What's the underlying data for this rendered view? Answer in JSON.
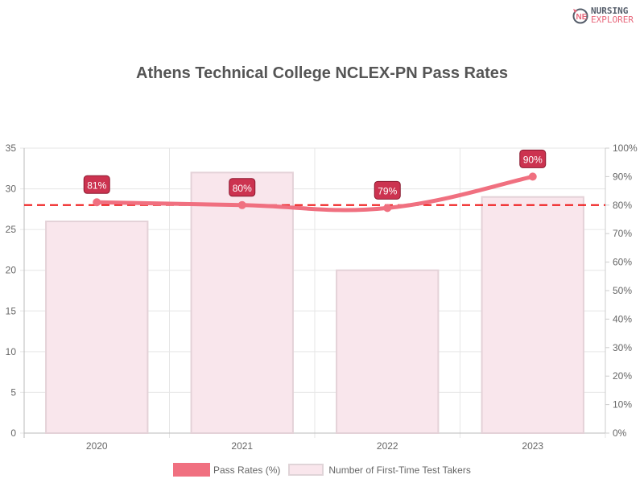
{
  "logo": {
    "line1": "NURSING",
    "line2": "EXPLORER"
  },
  "title": "Athens Technical College NCLEX-PN Pass Rates",
  "legend": {
    "line_label": "Pass Rates (%)",
    "bar_label": "Number of First-Time Test Takers"
  },
  "colors": {
    "line": "#f07080",
    "bar_fill": "#f9e6ec",
    "bar_border": "#e4d2d8",
    "label_bg": "#cc3350",
    "reference": "#ee1111"
  },
  "chart_data": {
    "type": "bar",
    "title": "Athens Technical College NCLEX-PN Pass Rates",
    "categories": [
      "2020",
      "2021",
      "2022",
      "2023"
    ],
    "series": [
      {
        "name": "Number of First-Time Test Takers",
        "type": "bar",
        "axis": "left",
        "values": [
          26,
          32,
          20,
          29
        ]
      },
      {
        "name": "Pass Rates (%)",
        "type": "line",
        "axis": "right",
        "values": [
          81,
          80,
          79,
          90
        ],
        "labels": [
          "81%",
          "80%",
          "79%",
          "90%"
        ]
      }
    ],
    "reference_line": {
      "axis": "right",
      "value": 80,
      "style": "dashed",
      "color": "#ee1111"
    },
    "y_left": {
      "ylim": [
        0,
        35
      ],
      "ticks": [
        "0",
        "5",
        "10",
        "15",
        "20",
        "25",
        "30",
        "35"
      ]
    },
    "y_right": {
      "ylim": [
        0,
        100
      ],
      "ticks": [
        "0%",
        "10%",
        "20%",
        "30%",
        "40%",
        "50%",
        "60%",
        "70%",
        "80%",
        "90%",
        "100%"
      ]
    },
    "grid": true,
    "legend_position": "bottom"
  }
}
